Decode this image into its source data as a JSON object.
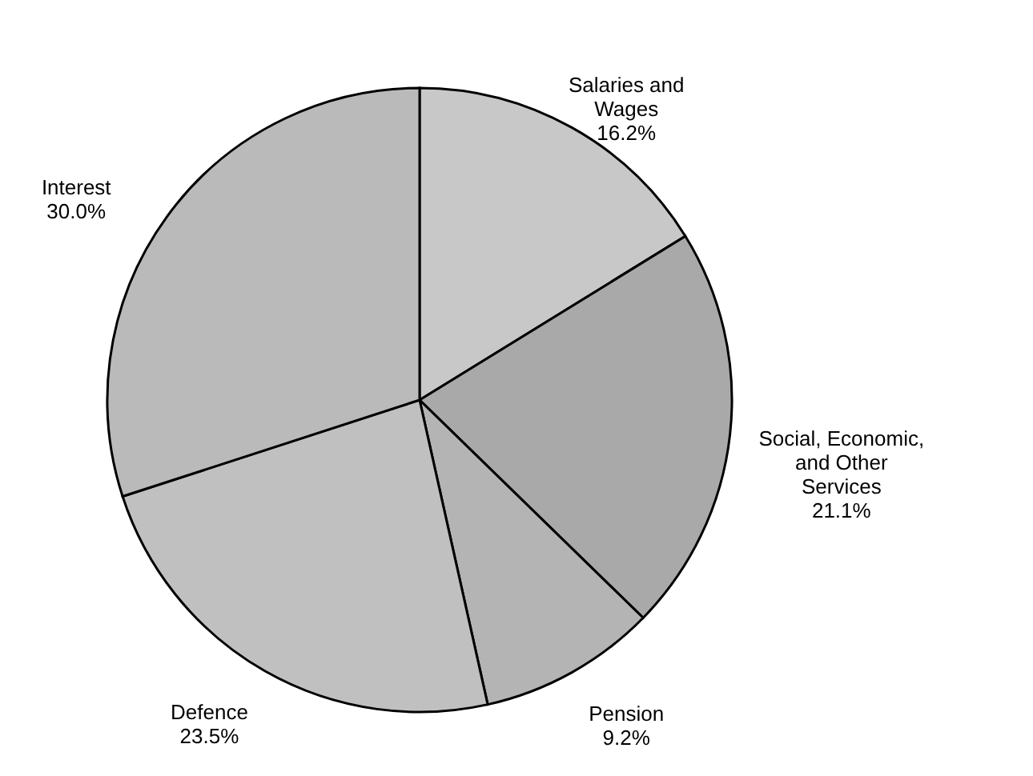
{
  "chart_data": {
    "type": "pie",
    "categories": [
      "Salaries and Wages",
      "Social, Economic, and Other Services",
      "Pension",
      "Defence",
      "Interest"
    ],
    "values": [
      16.2,
      21.1,
      9.2,
      23.5,
      30.0
    ],
    "value_labels": [
      "16.2%",
      "21.1%",
      "9.2%",
      "23.5%",
      "30.0%"
    ],
    "colors": [
      "#c8c8c8",
      "#a9a9a9",
      "#b4b4b4",
      "#c0c0c0",
      "#bababa"
    ]
  }
}
